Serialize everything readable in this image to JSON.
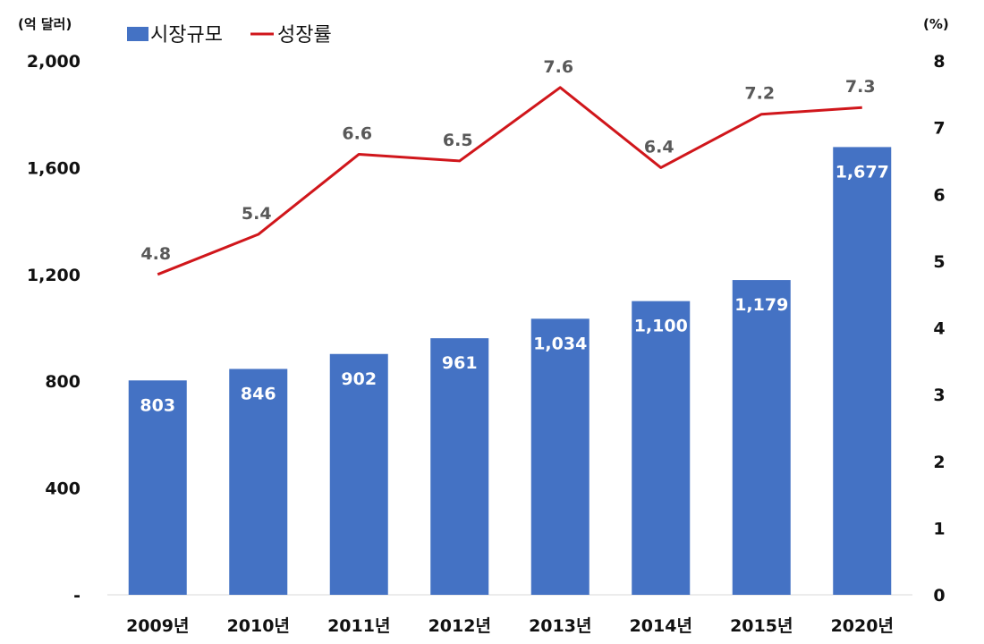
{
  "chart_data": {
    "type": "bar",
    "categories": [
      "2009년",
      "2010년",
      "2011년",
      "2012년",
      "2013년",
      "2014년",
      "2015년",
      "2020년"
    ],
    "series": [
      {
        "name": "시장규모",
        "type": "bar",
        "axis": "left",
        "color": "#4472C4",
        "values": [
          803,
          846,
          902,
          961,
          1034,
          1100,
          1179,
          1677
        ],
        "labels": [
          "803",
          "846",
          "902",
          "961",
          "1,034",
          "1,100",
          "1,179",
          "1,677"
        ]
      },
      {
        "name": "성장률",
        "type": "line",
        "axis": "right",
        "color": "#D0161B",
        "values": [
          4.8,
          5.4,
          6.6,
          6.5,
          7.6,
          6.4,
          7.2,
          7.3
        ],
        "labels": [
          "4.8",
          "5.4",
          "6.6",
          "6.5",
          "7.6",
          "6.4",
          "7.2",
          "7.3"
        ]
      }
    ],
    "y_left": {
      "unit_label": "(억 달러)",
      "ylim": [
        0,
        2000
      ],
      "ticks": [
        0,
        400,
        800,
        1200,
        1600,
        2000
      ],
      "tick_labels": [
        "-",
        "400",
        "800",
        "1,200",
        "1,600",
        "2,000"
      ]
    },
    "y_right": {
      "unit_label": "(%)",
      "ylim": [
        0,
        8
      ],
      "ticks": [
        0,
        1,
        2,
        3,
        4,
        5,
        6,
        7,
        8
      ],
      "tick_labels": [
        "0",
        "1",
        "2",
        "3",
        "4",
        "5",
        "6",
        "7",
        "8"
      ]
    },
    "legend": {
      "position": "top-left"
    },
    "grid": false
  }
}
